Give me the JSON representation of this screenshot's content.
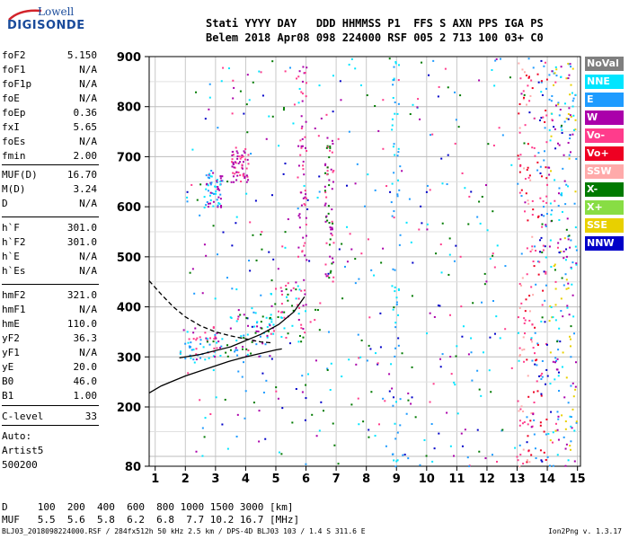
{
  "logo": {
    "line1": "Lowell",
    "line2": "DIGISONDE"
  },
  "header": {
    "line1": "Stati YYYY DAY   DDD HHMMSS P1  FFS S AXN PPS IGA PS",
    "line2": "Belem 2018 Apr08 098 224000 RSF 005 2 713 100 03+ C0"
  },
  "params": [
    {
      "label": "foF2",
      "value": "5.150"
    },
    {
      "label": "foF1",
      "value": "N/A"
    },
    {
      "label": "foF1p",
      "value": "N/A"
    },
    {
      "label": "foE",
      "value": "N/A"
    },
    {
      "label": "foEp",
      "value": "0.36"
    },
    {
      "label": "fxI",
      "value": "5.65"
    },
    {
      "label": "foEs",
      "value": "N/A"
    },
    {
      "label": "fmin",
      "value": "2.00"
    },
    {
      "label": "MUF(D)",
      "value": "16.70"
    },
    {
      "label": "M(D)",
      "value": "3.24"
    },
    {
      "label": "D",
      "value": "N/A"
    },
    {
      "label": "h`F",
      "value": "301.0"
    },
    {
      "label": "h`F2",
      "value": "301.0"
    },
    {
      "label": "h`E",
      "value": "N/A"
    },
    {
      "label": "h`Es",
      "value": "N/A"
    },
    {
      "label": "hmF2",
      "value": "321.0"
    },
    {
      "label": "hmF1",
      "value": "N/A"
    },
    {
      "label": "hmE",
      "value": "110.0"
    },
    {
      "label": "yF2",
      "value": "36.3"
    },
    {
      "label": "yF1",
      "value": "N/A"
    },
    {
      "label": "yE",
      "value": "20.0"
    },
    {
      "label": "B0",
      "value": "46.0"
    },
    {
      "label": "B1",
      "value": "1.00"
    },
    {
      "label": "C-level",
      "value": "33"
    },
    {
      "label": "Auto:",
      "value": ""
    },
    {
      "label": "Artist5",
      "value": ""
    },
    {
      "label": "500200",
      "value": ""
    }
  ],
  "bottom": {
    "line1": "D     100  200  400  600  800 1000 1500 3000 [km]",
    "line2": "MUF   5.5  5.6  5.8  6.2  6.8  7.7 10.2 16.7 [MHz]"
  },
  "footer": {
    "file": "BLJ03_2018098224000.RSF / 284fx512h 50 kHz 2.5 km / DPS-4D BLJ03 103 / 1.4 S 311.6 E",
    "version": "Ion2Png v. 1.3.17"
  },
  "legend": [
    {
      "label": "NoVal",
      "color": "#7f7f7f"
    },
    {
      "label": "NNE",
      "color": "#00e5ff"
    },
    {
      "label": "E",
      "color": "#1e9bff"
    },
    {
      "label": "W",
      "color": "#aa00aa"
    },
    {
      "label": "Vo-",
      "color": "#ff3c8c"
    },
    {
      "label": "Vo+",
      "color": "#ee0022"
    },
    {
      "label": "SSW",
      "color": "#ffaaaa"
    },
    {
      "label": "X-",
      "color": "#007a00"
    },
    {
      "label": "X+",
      "color": "#88dd44"
    },
    {
      "label": "SSE",
      "color": "#e8d000"
    },
    {
      "label": "NNW",
      "color": "#0000c8"
    }
  ],
  "chart_data": {
    "type": "scatter",
    "xlabel": "",
    "ylabel": "",
    "xlim": [
      0.8,
      15.1
    ],
    "ylim": [
      80,
      900
    ],
    "xticks": [
      1,
      2,
      3,
      4,
      5,
      6,
      7,
      8,
      9,
      10,
      11,
      12,
      13,
      14,
      15
    ],
    "yticks": [
      80,
      200,
      300,
      400,
      500,
      600,
      700,
      800,
      900
    ],
    "grid": true,
    "legend_position": "right",
    "series": [
      {
        "name": "virtual height profile",
        "color": "#000000",
        "style": "solid",
        "x": [
          0.8,
          1.2,
          1.6,
          2.0,
          2.5,
          3.0,
          3.5,
          4.0,
          4.5,
          5.0,
          5.2
        ],
        "y": [
          228,
          242,
          252,
          262,
          272,
          282,
          292,
          300,
          307,
          314,
          316
        ]
      },
      {
        "name": "MUF curve",
        "color": "#000000",
        "style": "dashed",
        "x": [
          0.8,
          1.2,
          1.6,
          2.0,
          2.5,
          3.0,
          3.5,
          4.0,
          4.5,
          4.9
        ],
        "y": [
          452,
          425,
          400,
          380,
          362,
          350,
          342,
          336,
          330,
          328
        ]
      },
      {
        "name": "trace",
        "color": "#000000",
        "style": "solid",
        "x": [
          1.8,
          2.5,
          3.5,
          4.5,
          5.1,
          5.6,
          5.95
        ],
        "y": [
          298,
          305,
          320,
          345,
          365,
          390,
          420
        ]
      }
    ],
    "echo_clusters": [
      {
        "x": [
          1.8,
          3.2
        ],
        "y": [
          290,
          360
        ],
        "colors": [
          "#aa00aa",
          "#ff3c8c",
          "#00e5ff",
          "#1e9bff"
        ]
      },
      {
        "x": [
          3.3,
          4.8
        ],
        "y": [
          300,
          400
        ],
        "colors": [
          "#1e9bff",
          "#00e5ff",
          "#aa00aa",
          "#007a00"
        ]
      },
      {
        "x": [
          4.8,
          6.0
        ],
        "y": [
          330,
          460
        ],
        "colors": [
          "#ff3c8c",
          "#00e5ff",
          "#007a00",
          "#aa00aa"
        ]
      },
      {
        "x": [
          2.6,
          3.2
        ],
        "y": [
          600,
          670
        ],
        "colors": [
          "#1e9bff",
          "#00e5ff",
          "#aa00aa"
        ]
      },
      {
        "x": [
          3.5,
          4.1
        ],
        "y": [
          650,
          720
        ],
        "colors": [
          "#aa00aa",
          "#ff3c8c"
        ]
      },
      {
        "x": [
          5.7,
          6.0
        ],
        "y": [
          400,
          900
        ],
        "colors": [
          "#ff3c8c",
          "#aa00aa"
        ]
      },
      {
        "x": [
          6.6,
          6.9
        ],
        "y": [
          450,
          750
        ],
        "colors": [
          "#aa00aa",
          "#ff3c8c",
          "#007a00"
        ]
      },
      {
        "x": [
          8.8,
          9.1
        ],
        "y": [
          80,
          900
        ],
        "colors": [
          "#00e5ff",
          "#1e9bff"
        ]
      },
      {
        "x": [
          13.0,
          13.5
        ],
        "y": [
          80,
          900
        ],
        "colors": [
          "#ff3c8c",
          "#ee0022",
          "#ffaaaa"
        ]
      },
      {
        "x": [
          13.5,
          14.0
        ],
        "y": [
          80,
          900
        ],
        "colors": [
          "#ee0022",
          "#ff3c8c",
          "#0000c8",
          "#1e9bff"
        ]
      },
      {
        "x": [
          14.0,
          14.95
        ],
        "y": [
          80,
          900
        ],
        "colors": [
          "#1e9bff",
          "#00e5ff",
          "#e8d000",
          "#aa00aa"
        ]
      }
    ]
  }
}
